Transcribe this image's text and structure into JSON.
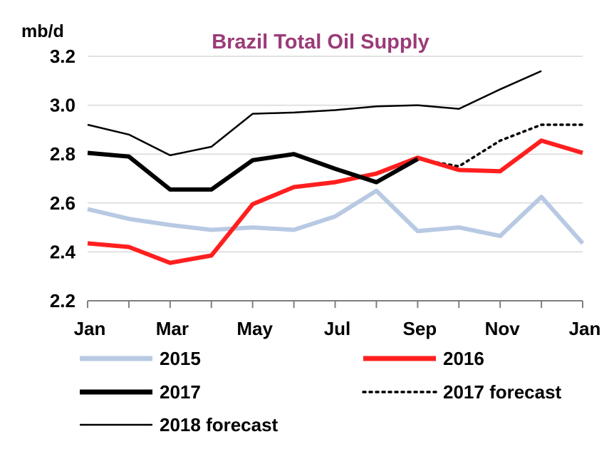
{
  "chart_data": {
    "type": "line",
    "title": "Brazil Total Oil Supply",
    "ylabel": "mb/d",
    "xlabel": "",
    "ylim": [
      2.2,
      3.2
    ],
    "yticks": [
      "2.2",
      "2.4",
      "2.6",
      "2.8",
      "3.0",
      "3.2"
    ],
    "ytick_values": [
      2.2,
      2.4,
      2.6,
      2.8,
      3.0,
      3.2
    ],
    "categories": [
      "Jan",
      "Feb",
      "Mar",
      "Apr",
      "May",
      "Jun",
      "Jul",
      "Aug",
      "Sep",
      "Oct",
      "Nov",
      "Dec",
      "Jan"
    ],
    "tick_labels": [
      "Jan",
      "",
      "Mar",
      "",
      "May",
      "",
      "Jul",
      "",
      "Sep",
      "",
      "Nov",
      "",
      "Jan"
    ],
    "grid": "horizontal",
    "legend_position": "bottom",
    "colors": {
      "title": "#9b3b78",
      "s2015": "#b8c9e3",
      "s2016": "#ff1f1f",
      "s2017": "#000000",
      "axis": "#7f7f7f",
      "grid": "#d9d9d9"
    },
    "series": [
      {
        "name": "2015",
        "style": "thick-solid",
        "color": "#b8c9e3",
        "values": [
          2.575,
          2.535,
          2.51,
          2.49,
          2.5,
          2.49,
          2.545,
          2.65,
          2.485,
          2.5,
          2.465,
          2.625,
          2.435
        ]
      },
      {
        "name": "2016",
        "style": "thick-solid",
        "color": "#ff1f1f",
        "values": [
          2.435,
          2.42,
          2.355,
          2.385,
          2.595,
          2.665,
          2.685,
          2.72,
          2.785,
          2.735,
          2.73,
          2.855,
          2.805
        ]
      },
      {
        "name": "2017",
        "style": "thick-solid",
        "color": "#000000",
        "values": [
          2.805,
          2.79,
          2.655,
          2.655,
          2.775,
          2.8,
          2.74,
          2.685,
          2.78,
          null,
          null,
          null,
          null
        ]
      },
      {
        "name": "2017 forecast",
        "style": "dotted",
        "color": "#000000",
        "values": [
          null,
          null,
          null,
          null,
          null,
          null,
          null,
          null,
          2.78,
          2.75,
          2.855,
          2.92,
          2.92
        ]
      },
      {
        "name": "2018 forecast",
        "style": "thin-solid",
        "color": "#000000",
        "values": [
          2.92,
          2.88,
          2.795,
          2.83,
          2.965,
          2.97,
          2.98,
          2.995,
          3.0,
          2.985,
          3.065,
          3.14,
          null
        ]
      }
    ]
  }
}
